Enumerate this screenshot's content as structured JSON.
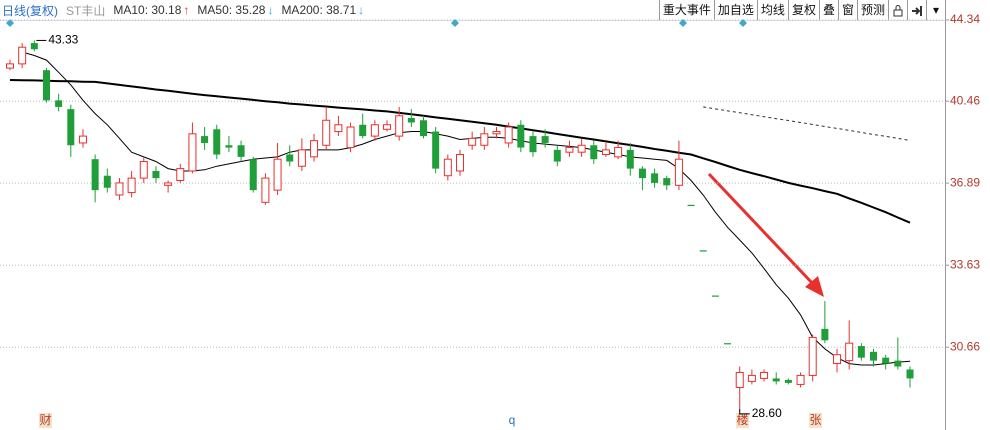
{
  "header": {
    "period": "日线(复权)",
    "symbol": "ST丰山"
  },
  "toolbar": [
    "重大事件",
    "加自选",
    "均线",
    "复权",
    "叠",
    "窗",
    "预测"
  ],
  "event_markers": [
    "财",
    "q",
    "楼",
    "张"
  ],
  "chart_data": {
    "type": "candlestick",
    "log_scale": true,
    "grid": true,
    "up_color": "#e8312f",
    "down_color": "#1f9e3a",
    "ylim": [
      28.5,
      44.34
    ],
    "yticks": [
      44.34,
      40.46,
      36.89,
      33.63,
      30.66
    ],
    "high_label": 43.33,
    "low_label": {
      "value": 28.6,
      "label": "28.60"
    },
    "ohlc": [
      [
        42.0,
        42.4,
        41.9,
        42.2
      ],
      [
        42.2,
        43.2,
        42.0,
        43.0
      ],
      [
        43.2,
        43.33,
        42.8,
        42.9
      ],
      [
        41.9,
        42.0,
        40.4,
        40.5
      ],
      [
        40.5,
        40.8,
        40.0,
        40.2
      ],
      [
        40.1,
        40.3,
        38.0,
        38.5
      ],
      [
        38.6,
        39.2,
        38.4,
        38.9
      ],
      [
        37.9,
        38.1,
        36.1,
        36.6
      ],
      [
        37.2,
        37.5,
        36.5,
        36.7
      ],
      [
        36.4,
        37.1,
        36.2,
        36.9
      ],
      [
        36.5,
        37.4,
        36.3,
        37.1
      ],
      [
        37.1,
        38.0,
        36.9,
        37.8
      ],
      [
        37.4,
        37.6,
        36.9,
        37.1
      ],
      [
        36.8,
        37.0,
        36.5,
        36.9
      ],
      [
        37.0,
        37.7,
        36.9,
        37.5
      ],
      [
        37.4,
        39.5,
        37.3,
        39.0
      ],
      [
        38.9,
        39.3,
        38.3,
        38.6
      ],
      [
        39.2,
        39.4,
        37.9,
        38.1
      ],
      [
        38.5,
        38.9,
        38.2,
        38.4
      ],
      [
        38.5,
        38.7,
        37.8,
        38.0
      ],
      [
        37.9,
        38.0,
        36.5,
        36.6
      ],
      [
        36.1,
        37.3,
        36.0,
        37.1
      ],
      [
        36.6,
        38.6,
        36.4,
        37.9
      ],
      [
        38.1,
        38.5,
        37.6,
        37.8
      ],
      [
        37.6,
        38.8,
        37.4,
        38.3
      ],
      [
        38.0,
        39.0,
        37.8,
        38.7
      ],
      [
        38.5,
        40.2,
        38.3,
        39.6
      ],
      [
        39.1,
        39.8,
        38.9,
        39.4
      ],
      [
        38.4,
        39.5,
        38.2,
        39.3
      ],
      [
        39.4,
        39.9,
        38.8,
        38.9
      ],
      [
        38.9,
        39.6,
        38.7,
        39.4
      ],
      [
        39.2,
        39.6,
        39.1,
        39.4
      ],
      [
        38.9,
        40.2,
        38.7,
        39.8
      ],
      [
        39.7,
        40.1,
        39.3,
        39.5
      ],
      [
        39.6,
        39.8,
        38.8,
        38.9
      ],
      [
        39.1,
        39.3,
        37.3,
        37.5
      ],
      [
        37.2,
        38.1,
        37.0,
        37.9
      ],
      [
        37.4,
        38.3,
        37.2,
        38.1
      ],
      [
        38.5,
        39.1,
        38.3,
        38.8
      ],
      [
        38.5,
        39.3,
        38.3,
        39.0
      ],
      [
        39.0,
        39.3,
        38.8,
        39.1
      ],
      [
        38.6,
        39.5,
        38.4,
        39.3
      ],
      [
        39.4,
        39.6,
        38.2,
        38.4
      ],
      [
        38.9,
        39.1,
        38.0,
        38.2
      ],
      [
        38.9,
        39.2,
        38.4,
        38.6
      ],
      [
        38.3,
        38.5,
        37.6,
        37.8
      ],
      [
        38.2,
        38.7,
        38.0,
        38.4
      ],
      [
        38.2,
        38.8,
        38.0,
        38.5
      ],
      [
        38.5,
        38.7,
        37.7,
        37.9
      ],
      [
        38.1,
        38.6,
        38.0,
        38.3
      ],
      [
        38.0,
        38.7,
        37.9,
        38.4
      ],
      [
        38.3,
        38.6,
        37.2,
        37.5
      ],
      [
        37.5,
        37.6,
        36.6,
        37.1
      ],
      [
        37.3,
        37.5,
        36.7,
        36.9
      ],
      [
        37.1,
        37.2,
        36.6,
        36.8
      ],
      [
        36.8,
        38.7,
        36.6,
        37.9
      ],
      [
        36.0,
        36.0,
        36.0,
        36.0
      ],
      [
        34.2,
        34.2,
        34.2,
        34.2
      ],
      [
        32.5,
        32.5,
        32.5,
        32.5
      ],
      [
        30.8,
        30.8,
        30.8,
        30.8
      ],
      [
        29.3,
        30.0,
        28.6,
        29.8
      ],
      [
        29.5,
        29.9,
        29.4,
        29.7
      ],
      [
        29.6,
        29.9,
        29.5,
        29.8
      ],
      [
        29.6,
        29.8,
        29.4,
        29.5
      ],
      [
        29.55,
        29.6,
        29.4,
        29.45
      ],
      [
        29.4,
        29.8,
        29.3,
        29.7
      ],
      [
        29.7,
        31.1,
        29.5,
        31.0
      ],
      [
        31.3,
        32.3,
        30.8,
        30.9
      ],
      [
        30.1,
        30.6,
        29.8,
        30.4
      ],
      [
        30.2,
        31.6,
        29.9,
        30.8
      ],
      [
        30.7,
        30.8,
        30.2,
        30.3
      ],
      [
        30.5,
        30.6,
        30.0,
        30.2
      ],
      [
        30.3,
        30.4,
        29.9,
        30.1
      ],
      [
        30.2,
        31.0,
        29.9,
        30.0
      ],
      [
        29.9,
        30.0,
        29.3,
        29.6
      ]
    ],
    "series": [
      {
        "name": "MA10",
        "color": "#000000",
        "width": 1,
        "dashed": false,
        "trend": "↑",
        "legend_label": {
          "value": 30.18,
          "label": "MA10: 30.18"
        },
        "values": [
          null,
          42.77,
          42.6,
          42.38,
          41.8,
          41.21,
          40.5,
          39.9,
          39.4,
          38.8,
          38.2,
          38.0,
          37.8,
          37.5,
          37.4,
          37.4,
          37.45,
          37.6,
          37.7,
          37.8,
          37.9,
          37.95,
          38.0,
          38.2,
          38.3,
          38.3,
          38.3,
          38.3,
          38.4,
          38.55,
          38.75,
          38.9,
          39.05,
          39.1,
          39.1,
          39.0,
          38.9,
          38.75,
          38.8,
          38.85,
          38.85,
          38.8,
          38.7,
          38.6,
          38.55,
          38.5,
          38.45,
          38.4,
          38.3,
          38.2,
          38.1,
          38.0,
          37.95,
          37.9,
          37.85,
          37.5,
          37.0,
          36.4,
          35.7,
          35.1,
          34.6,
          34.1,
          33.5,
          32.9,
          32.4,
          31.8,
          31.0,
          30.6,
          30.3,
          30.1,
          30.05,
          30.05,
          30.1,
          30.15,
          30.18
        ]
      },
      {
        "name": "MA50",
        "color": "#000000",
        "width": 2,
        "dashed": false,
        "trend": "↓",
        "legend_label": {
          "value": 35.28,
          "label": "MA50: 35.28"
        },
        "values": [
          41.44,
          41.43,
          41.42,
          41.4,
          41.39,
          41.38,
          41.36,
          41.35,
          41.28,
          41.21,
          41.14,
          41.07,
          41.0,
          40.94,
          40.87,
          40.8,
          40.74,
          40.69,
          40.63,
          40.58,
          40.52,
          40.46,
          40.41,
          40.35,
          40.31,
          40.26,
          40.22,
          40.17,
          40.13,
          40.09,
          40.04,
          40.0,
          39.93,
          39.87,
          39.8,
          39.73,
          39.67,
          39.6,
          39.53,
          39.47,
          39.4,
          39.32,
          39.24,
          39.16,
          39.08,
          38.99,
          38.91,
          38.83,
          38.75,
          38.67,
          38.59,
          38.51,
          38.43,
          38.34,
          38.26,
          38.18,
          38.1,
          37.94,
          37.78,
          37.61,
          37.45,
          37.31,
          37.18,
          37.04,
          36.9,
          36.79,
          36.68,
          36.56,
          36.45,
          36.26,
          36.08,
          35.89,
          35.7,
          35.49,
          35.28
        ]
      },
      {
        "name": "MA200",
        "color": "#333333",
        "width": 1,
        "dashed": true,
        "trend": "↓",
        "legend_label": {
          "value": 38.71,
          "label": "MA200: 38.71"
        },
        "values": [
          null,
          null,
          null,
          null,
          null,
          null,
          null,
          null,
          null,
          null,
          null,
          null,
          null,
          null,
          null,
          null,
          null,
          null,
          null,
          null,
          null,
          null,
          null,
          null,
          null,
          null,
          null,
          null,
          null,
          null,
          null,
          null,
          null,
          null,
          null,
          null,
          null,
          null,
          null,
          null,
          null,
          null,
          null,
          null,
          null,
          null,
          null,
          null,
          null,
          null,
          null,
          null,
          null,
          null,
          null,
          null,
          null,
          40.2,
          40.11,
          40.02,
          39.94,
          39.85,
          39.76,
          39.67,
          39.59,
          39.5,
          39.41,
          39.32,
          39.24,
          39.15,
          39.06,
          38.97,
          38.89,
          38.8,
          38.71
        ]
      }
    ]
  }
}
